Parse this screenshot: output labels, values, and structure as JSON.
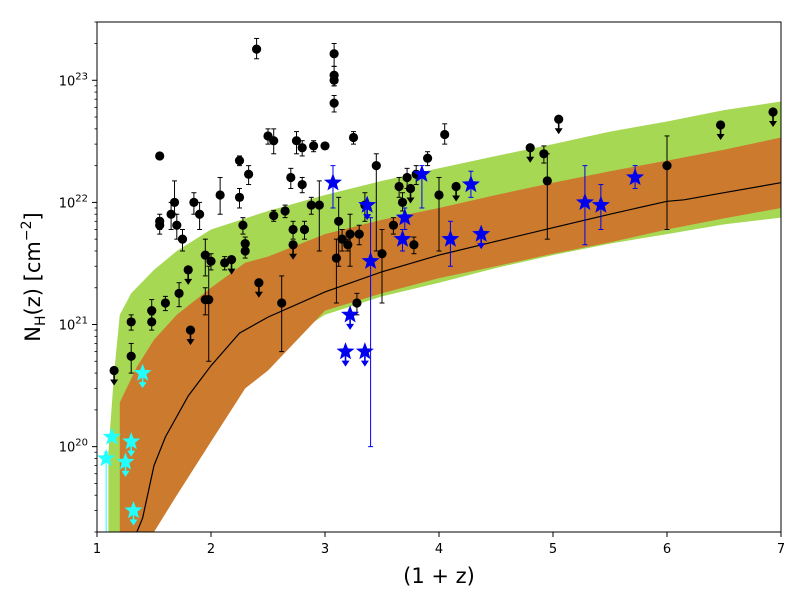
{
  "chart_data": {
    "type": "scatter",
    "xlabel": "(1 + z)",
    "ylabel_main": "N",
    "ylabel_sub": "H",
    "ylabel_rest": "(z) [cm",
    "ylabel_sup": "−2",
    "ylabel_end": "]",
    "xlim": [
      1,
      7
    ],
    "ylim": [
      2e+19,
      3e+23
    ],
    "ylog": true,
    "x_ticks": [
      1,
      2,
      3,
      4,
      5,
      6,
      7
    ],
    "x_tick_labels": [
      "1",
      "2",
      "3",
      "4",
      "5",
      "6",
      "7"
    ],
    "y_ticks": [
      {
        "value": 1e+20,
        "base": "10",
        "exp": "20"
      },
      {
        "value": 1e+21,
        "base": "10",
        "exp": "21"
      },
      {
        "value": 1e+22,
        "base": "10",
        "exp": "22"
      },
      {
        "value": 1e+23,
        "base": "10",
        "exp": "23"
      }
    ],
    "colors": {
      "outer_band": "#a6d854",
      "inner_band": "#cc7a2e",
      "median": "#000000",
      "points": "#000000",
      "blue_stars": "#0000ee",
      "cyan_stars": "#22ffff"
    },
    "outer_band": [
      [
        1.1,
        9e+19,
        2e+19
      ],
      [
        1.15,
        4e+20,
        2e+19
      ],
      [
        1.2,
        1.2e+21,
        2e+19
      ],
      [
        1.3,
        1.8e+21,
        2e+19
      ],
      [
        1.5,
        2.8e+21,
        2e+19
      ],
      [
        1.7,
        4e+21,
        6e+19
      ],
      [
        2.0,
        6e+21,
        2.2e+20
      ],
      [
        2.5,
        8.5e+21,
        6e+20
      ],
      [
        3.0,
        1.15e+22,
        1.2e+21
      ],
      [
        3.5,
        1.5e+22,
        1.7e+21
      ],
      [
        4.0,
        1.9e+22,
        2.2e+21
      ],
      [
        4.5,
        2.4e+22,
        2.9e+21
      ],
      [
        5.0,
        3e+22,
        3.7e+21
      ],
      [
        5.5,
        3.8e+22,
        4.6e+21
      ],
      [
        6.0,
        4.6e+22,
        5.5e+21
      ],
      [
        6.5,
        5.7e+22,
        6.6e+21
      ],
      [
        7.0,
        6.7e+22,
        7.5e+21
      ]
    ],
    "inner_band": [
      [
        1.2,
        2.3e+20,
        2e+19
      ],
      [
        1.35,
        4.5e+20,
        2e+19
      ],
      [
        1.5,
        7.5e+20,
        2e+19
      ],
      [
        1.7,
        1.2e+21,
        4e+19
      ],
      [
        2.0,
        2e+21,
        1.1e+20
      ],
      [
        2.3,
        3.2e+21,
        3e+20
      ],
      [
        2.5,
        3.6e+21,
        4.2e+20
      ],
      [
        3.0,
        5.5e+21,
        1.3e+21
      ],
      [
        3.5,
        7.2e+21,
        1.8e+21
      ],
      [
        4.0,
        9e+21,
        2.4e+21
      ],
      [
        4.5,
        1.15e+22,
        3e+21
      ],
      [
        5.0,
        1.45e+22,
        3.8e+21
      ],
      [
        5.5,
        1.8e+22,
        4.7e+21
      ],
      [
        6.0,
        2.2e+22,
        6e+21
      ],
      [
        6.5,
        2.7e+22,
        7.4e+21
      ],
      [
        7.0,
        3.4e+22,
        9e+21
      ]
    ],
    "median_line": [
      [
        1.35,
        2e+19
      ],
      [
        1.4,
        2.6e+19
      ],
      [
        1.5,
        7e+19
      ],
      [
        1.6,
        1.2e+20
      ],
      [
        1.8,
        2.6e+20
      ],
      [
        2.0,
        4.6e+20
      ],
      [
        2.25,
        8.5e+20
      ],
      [
        2.5,
        1.15e+21
      ],
      [
        3.0,
        1.85e+21
      ],
      [
        3.5,
        2.7e+21
      ],
      [
        4.0,
        3.7e+21
      ],
      [
        4.5,
        4.8e+21
      ],
      [
        5.0,
        6.2e+21
      ],
      [
        5.5,
        8e+21
      ],
      [
        6.0,
        1.02e+22
      ],
      [
        6.15,
        1.05e+22
      ],
      [
        6.5,
        1.2e+22
      ],
      [
        7.0,
        1.45e+22
      ]
    ],
    "series": [
      {
        "marker": "circle",
        "color": "#000000",
        "points": [
          [
            1.15,
            4.2e+20,
            null,
            null,
            true
          ],
          [
            1.3,
            1.05e+21,
            9e+20,
            1.2e+21,
            false
          ],
          [
            1.3,
            5.5e+20,
            4e+20,
            7e+20,
            false
          ],
          [
            1.48,
            1.3e+21,
            1e+21,
            1.6e+21,
            false
          ],
          [
            1.48,
            1.05e+21,
            9e+20,
            1.2e+21,
            false
          ],
          [
            1.55,
            2.4e+22,
            null,
            null,
            false
          ],
          [
            1.55,
            7e+21,
            6e+21,
            8e+21,
            false
          ],
          [
            1.55,
            6.5e+21,
            5.5e+21,
            7.5e+21,
            false
          ],
          [
            1.6,
            1.5e+21,
            1.3e+21,
            1.7e+21,
            false
          ],
          [
            1.65,
            8e+21,
            6e+21,
            1e+22,
            false
          ],
          [
            1.68,
            1e+22,
            8e+21,
            1.5e+22,
            false
          ],
          [
            1.7,
            6.5e+21,
            5e+21,
            8e+21,
            false
          ],
          [
            1.72,
            1.8e+21,
            1.4e+21,
            2.2e+21,
            false
          ],
          [
            1.75,
            5e+21,
            4e+21,
            6e+21,
            false
          ],
          [
            1.8,
            2.8e+21,
            null,
            null,
            true
          ],
          [
            1.82,
            9e+20,
            null,
            null,
            true
          ],
          [
            1.85,
            1e+22,
            8e+21,
            1.2e+22,
            false
          ],
          [
            1.9,
            8e+21,
            6e+21,
            1e+22,
            false
          ],
          [
            1.95,
            1.6e+21,
            1.2e+21,
            2e+21,
            false
          ],
          [
            1.95,
            3.7e+21,
            2.5e+21,
            5e+21,
            false
          ],
          [
            1.98,
            1.6e+21,
            5e+20,
            3e+21,
            false
          ],
          [
            2.0,
            3.3e+21,
            2.8e+21,
            3.8e+21,
            false
          ],
          [
            2.08,
            1.15e+22,
            8e+21,
            1.6e+22,
            false
          ],
          [
            2.12,
            3.2e+21,
            2.8e+21,
            3.6e+21,
            false
          ],
          [
            2.18,
            3.4e+21,
            null,
            null,
            true
          ],
          [
            2.25,
            2.2e+22,
            2e+22,
            2.4e+22,
            false
          ],
          [
            2.25,
            1.1e+22,
            9e+21,
            1.3e+22,
            false
          ],
          [
            2.28,
            6.5e+21,
            5.5e+21,
            7.5e+21,
            false
          ],
          [
            2.3,
            4.6e+21,
            4e+21,
            5.2e+21,
            false
          ],
          [
            2.3,
            4e+21,
            3.5e+21,
            4.5e+21,
            false
          ],
          [
            2.33,
            1.7e+22,
            1.4e+22,
            2e+22,
            false
          ],
          [
            2.4,
            1.8e+23,
            1.5e+23,
            2.2e+23,
            false
          ],
          [
            2.42,
            2.2e+21,
            null,
            null,
            true
          ],
          [
            2.5,
            3.5e+22,
            3e+22,
            4e+22,
            false
          ],
          [
            2.55,
            3.2e+22,
            2.5e+22,
            4e+22,
            false
          ],
          [
            2.55,
            7.8e+21,
            7e+21,
            8.6e+21,
            false
          ],
          [
            2.62,
            1.5e+21,
            6e+20,
            2.5e+21,
            false
          ],
          [
            2.65,
            8.5e+21,
            7.5e+21,
            9.5e+21,
            false
          ],
          [
            2.7,
            1.6e+22,
            1.3e+22,
            1.9e+22,
            false
          ],
          [
            2.72,
            6e+21,
            5e+21,
            7e+21,
            false
          ],
          [
            2.72,
            4.5e+21,
            null,
            null,
            true
          ],
          [
            2.75,
            3.2e+22,
            2.5e+22,
            3.8e+22,
            false
          ],
          [
            2.8,
            2.8e+22,
            2.4e+22,
            3.2e+22,
            false
          ],
          [
            2.8,
            1.4e+22,
            1.2e+22,
            1.6e+22,
            false
          ],
          [
            2.82,
            6e+21,
            5e+21,
            7e+21,
            false
          ],
          [
            2.88,
            9.5e+21,
            8e+21,
            1.1e+22,
            false
          ],
          [
            2.9,
            2.9e+22,
            2.6e+22,
            3.2e+22,
            false
          ],
          [
            2.95,
            9.5e+21,
            4e+21,
            1.5e+22,
            false
          ],
          [
            3.0,
            2.9e+22,
            null,
            null,
            false
          ],
          [
            3.08,
            1.65e+23,
            1.3e+23,
            2e+23,
            false
          ],
          [
            3.08,
            1.1e+23,
            9e+22,
            1.3e+23,
            false
          ],
          [
            3.08,
            1e+23,
            9e+22,
            1.1e+23,
            false
          ],
          [
            3.08,
            6.5e+22,
            5.5e+22,
            7.5e+22,
            false
          ],
          [
            3.1,
            3.5e+21,
            1.5e+21,
            5e+21,
            false
          ],
          [
            3.12,
            7e+21,
            3e+21,
            1.1e+22,
            false
          ],
          [
            3.15,
            5e+21,
            4e+21,
            6e+21,
            false
          ],
          [
            3.2,
            4.5e+21,
            4e+21,
            5e+21,
            false
          ],
          [
            3.22,
            5.5e+21,
            3e+21,
            8e+21,
            false
          ],
          [
            3.25,
            3.4e+22,
            3e+22,
            3.8e+22,
            false
          ],
          [
            3.28,
            1.5e+21,
            1.2e+21,
            1.8e+21,
            false
          ],
          [
            3.3,
            5.5e+21,
            4.5e+21,
            6.5e+21,
            false
          ],
          [
            3.35,
            9.5e+21,
            7e+21,
            1.2e+22,
            false
          ],
          [
            3.45,
            2e+22,
            4e+21,
            2.5e+22,
            false
          ],
          [
            3.5,
            3.8e+21,
            1.5e+21,
            6e+21,
            false
          ],
          [
            3.6,
            6.5e+21,
            5.5e+21,
            7.5e+21,
            false
          ],
          [
            3.65,
            1.35e+22,
            1.1e+22,
            1.6e+22,
            false
          ],
          [
            3.68,
            1e+22,
            8.5e+21,
            1.2e+22,
            false
          ],
          [
            3.72,
            1.6e+22,
            1.3e+22,
            1.9e+22,
            false
          ],
          [
            3.75,
            1.3e+22,
            null,
            null,
            true
          ],
          [
            3.78,
            4.5e+21,
            3.8e+21,
            5.2e+21,
            false
          ],
          [
            3.8,
            1.7e+22,
            1.4e+22,
            2e+22,
            false
          ],
          [
            3.9,
            2.3e+22,
            2e+22,
            2.6e+22,
            false
          ],
          [
            4.0,
            1.15e+22,
            4e+21,
            1.6e+22,
            false
          ],
          [
            4.05,
            3.6e+22,
            3e+22,
            4.4e+22,
            false
          ],
          [
            4.15,
            1.35e+22,
            null,
            null,
            true
          ],
          [
            4.8,
            2.8e+22,
            null,
            null,
            true
          ],
          [
            4.92,
            2.5e+22,
            2.1e+22,
            2.9e+22,
            false
          ],
          [
            4.95,
            1.5e+22,
            5e+21,
            2.5e+22,
            false
          ],
          [
            5.05,
            4.8e+22,
            null,
            null,
            true
          ],
          [
            6.0,
            2e+22,
            6e+21,
            3.5e+22,
            false
          ],
          [
            6.47,
            4.3e+22,
            null,
            null,
            true
          ],
          [
            6.93,
            5.5e+22,
            null,
            null,
            true
          ]
        ]
      },
      {
        "marker": "star",
        "color": "#0000ee",
        "points": [
          [
            3.07,
            1.45e+22,
            9e+21,
            2e+22,
            false
          ],
          [
            3.18,
            6e+20,
            null,
            null,
            true
          ],
          [
            3.22,
            1.2e+21,
            null,
            null,
            true
          ],
          [
            3.35,
            6e+20,
            null,
            null,
            true
          ],
          [
            3.37,
            9.5e+21,
            null,
            null,
            true
          ],
          [
            3.4,
            3.3e+21,
            1e+20,
            7.5e+21,
            false
          ],
          [
            3.68,
            5e+21,
            4e+21,
            6e+21,
            false
          ],
          [
            3.7,
            7.5e+21,
            6e+21,
            9e+21,
            false
          ],
          [
            3.85,
            1.7e+22,
            9e+21,
            2e+22,
            false
          ],
          [
            4.1,
            5e+21,
            3e+21,
            7e+21,
            false
          ],
          [
            4.28,
            1.4e+22,
            1.1e+22,
            1.8e+22,
            false
          ],
          [
            4.37,
            5.5e+21,
            null,
            null,
            true
          ],
          [
            5.28,
            1e+22,
            4.5e+21,
            2e+22,
            false
          ],
          [
            5.42,
            9.5e+21,
            6e+21,
            1.4e+22,
            false
          ],
          [
            5.72,
            1.6e+22,
            1.3e+22,
            2e+22,
            false
          ]
        ]
      },
      {
        "marker": "star",
        "color": "#22ffff",
        "points": [
          [
            1.08,
            8e+19,
            2e+19,
            9e+19,
            false
          ],
          [
            1.13,
            1.2e+20,
            null,
            null,
            false
          ],
          [
            1.25,
            7.5e+19,
            null,
            null,
            true
          ],
          [
            1.3,
            1.1e+20,
            null,
            null,
            true
          ],
          [
            1.32,
            3e+19,
            null,
            null,
            true
          ],
          [
            1.4,
            4e+20,
            null,
            null,
            true
          ]
        ]
      }
    ]
  }
}
